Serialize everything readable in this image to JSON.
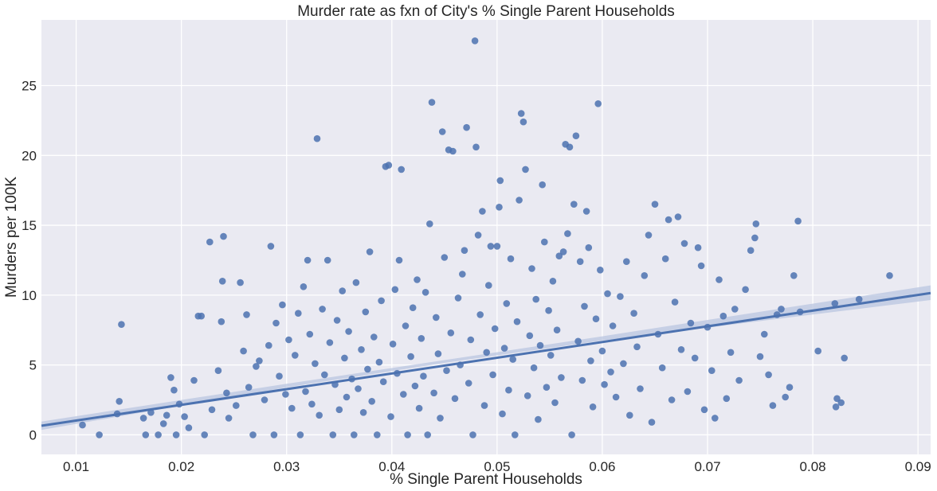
{
  "chart_data": {
    "type": "scatter",
    "title": "Murder rate as fxn of City's % Single Parent Households",
    "xlabel": "% Single Parent Households",
    "ylabel": "Murders per 100K",
    "xlim": [
      0.0067,
      0.0912
    ],
    "ylim": [
      -1.4,
      29.7
    ],
    "xticks": [
      0.01,
      0.02,
      0.03,
      0.04,
      0.05,
      0.06,
      0.07,
      0.08,
      0.09
    ],
    "xtick_labels": [
      "0.01",
      "0.02",
      "0.03",
      "0.04",
      "0.05",
      "0.06",
      "0.07",
      "0.08",
      "0.09"
    ],
    "yticks": [
      0,
      5,
      10,
      15,
      20,
      25
    ],
    "ytick_labels": [
      "0",
      "5",
      "10",
      "15",
      "20",
      "25"
    ],
    "grid": true,
    "colors": {
      "background": "#EAEAF2",
      "grid": "#FFFFFF",
      "points": "#4C72B0",
      "regression_line": "#4C72B0",
      "confidence_band": "#B9C5E0"
    },
    "regression_line": {
      "x": [
        0.0067,
        0.0912
      ],
      "y": [
        0.65,
        10.15
      ]
    },
    "confidence_band": {
      "x": [
        0.0067,
        0.03,
        0.045,
        0.06,
        0.0912
      ],
      "lower": [
        0.35,
        3.4,
        5.15,
        6.75,
        9.65
      ],
      "upper": [
        0.95,
        3.65,
        5.35,
        7.05,
        10.7
      ]
    },
    "points": [
      [
        0.0106,
        0.7
      ],
      [
        0.0122,
        0.0
      ],
      [
        0.0139,
        1.5
      ],
      [
        0.0141,
        2.4
      ],
      [
        0.0143,
        7.9
      ],
      [
        0.0164,
        1.2
      ],
      [
        0.0166,
        0.0
      ],
      [
        0.0171,
        1.6
      ],
      [
        0.0178,
        0.0
      ],
      [
        0.0183,
        0.8
      ],
      [
        0.0186,
        1.4
      ],
      [
        0.019,
        4.1
      ],
      [
        0.0193,
        3.2
      ],
      [
        0.0195,
        0.0
      ],
      [
        0.0198,
        2.2
      ],
      [
        0.0203,
        1.3
      ],
      [
        0.0207,
        0.5
      ],
      [
        0.0212,
        3.9
      ],
      [
        0.0216,
        8.5
      ],
      [
        0.0219,
        8.5
      ],
      [
        0.0222,
        0.0
      ],
      [
        0.0227,
        13.8
      ],
      [
        0.0229,
        1.8
      ],
      [
        0.0235,
        4.6
      ],
      [
        0.0238,
        8.1
      ],
      [
        0.0239,
        11.0
      ],
      [
        0.024,
        14.2
      ],
      [
        0.0243,
        3.0
      ],
      [
        0.0245,
        1.2
      ],
      [
        0.0252,
        2.1
      ],
      [
        0.0256,
        10.9
      ],
      [
        0.0259,
        6.0
      ],
      [
        0.0262,
        8.6
      ],
      [
        0.0264,
        3.4
      ],
      [
        0.0268,
        0.0
      ],
      [
        0.0271,
        4.9
      ],
      [
        0.0274,
        5.3
      ],
      [
        0.0279,
        2.5
      ],
      [
        0.0283,
        6.4
      ],
      [
        0.0285,
        13.5
      ],
      [
        0.0288,
        0.0
      ],
      [
        0.029,
        8.0
      ],
      [
        0.0293,
        4.2
      ],
      [
        0.0296,
        9.3
      ],
      [
        0.0299,
        2.9
      ],
      [
        0.0302,
        6.8
      ],
      [
        0.0305,
        1.9
      ],
      [
        0.0308,
        5.7
      ],
      [
        0.0311,
        8.7
      ],
      [
        0.0313,
        0.0
      ],
      [
        0.0316,
        10.6
      ],
      [
        0.0318,
        3.1
      ],
      [
        0.032,
        12.5
      ],
      [
        0.0322,
        7.2
      ],
      [
        0.0324,
        2.2
      ],
      [
        0.0327,
        5.1
      ],
      [
        0.0329,
        21.2
      ],
      [
        0.0331,
        1.4
      ],
      [
        0.0334,
        9.0
      ],
      [
        0.0336,
        4.3
      ],
      [
        0.0339,
        12.5
      ],
      [
        0.0341,
        6.6
      ],
      [
        0.0344,
        0.0
      ],
      [
        0.0346,
        3.6
      ],
      [
        0.0348,
        8.2
      ],
      [
        0.035,
        1.8
      ],
      [
        0.0353,
        10.3
      ],
      [
        0.0355,
        5.5
      ],
      [
        0.0357,
        2.7
      ],
      [
        0.0359,
        7.4
      ],
      [
        0.0362,
        4.0
      ],
      [
        0.0364,
        0.0
      ],
      [
        0.0366,
        10.9
      ],
      [
        0.0368,
        3.3
      ],
      [
        0.0371,
        6.1
      ],
      [
        0.0373,
        1.6
      ],
      [
        0.0375,
        8.8
      ],
      [
        0.0377,
        4.7
      ],
      [
        0.0379,
        13.1
      ],
      [
        0.0381,
        2.4
      ],
      [
        0.0383,
        7.0
      ],
      [
        0.0386,
        0.0
      ],
      [
        0.0388,
        5.2
      ],
      [
        0.039,
        9.6
      ],
      [
        0.0392,
        3.8
      ],
      [
        0.0394,
        19.2
      ],
      [
        0.0397,
        19.3
      ],
      [
        0.0399,
        1.3
      ],
      [
        0.0401,
        6.5
      ],
      [
        0.0403,
        10.4
      ],
      [
        0.0405,
        4.4
      ],
      [
        0.0407,
        12.5
      ],
      [
        0.0409,
        19.0
      ],
      [
        0.0411,
        2.9
      ],
      [
        0.0413,
        7.8
      ],
      [
        0.0415,
        0.0
      ],
      [
        0.0418,
        5.6
      ],
      [
        0.042,
        9.1
      ],
      [
        0.0422,
        3.5
      ],
      [
        0.0424,
        11.1
      ],
      [
        0.0426,
        1.9
      ],
      [
        0.0428,
        6.9
      ],
      [
        0.043,
        4.2
      ],
      [
        0.0432,
        10.2
      ],
      [
        0.0434,
        0.0
      ],
      [
        0.0436,
        15.1
      ],
      [
        0.0438,
        23.8
      ],
      [
        0.044,
        3.0
      ],
      [
        0.0442,
        8.4
      ],
      [
        0.0444,
        5.8
      ],
      [
        0.0446,
        1.2
      ],
      [
        0.0448,
        21.7
      ],
      [
        0.045,
        12.7
      ],
      [
        0.0452,
        4.6
      ],
      [
        0.0454,
        20.4
      ],
      [
        0.0456,
        7.3
      ],
      [
        0.0458,
        20.3
      ],
      [
        0.046,
        2.6
      ],
      [
        0.0463,
        9.8
      ],
      [
        0.0465,
        5.0
      ],
      [
        0.0467,
        11.5
      ],
      [
        0.0469,
        13.2
      ],
      [
        0.0471,
        22.0
      ],
      [
        0.0473,
        3.7
      ],
      [
        0.0475,
        6.8
      ],
      [
        0.0477,
        0.0
      ],
      [
        0.0479,
        28.2
      ],
      [
        0.048,
        20.6
      ],
      [
        0.0482,
        14.3
      ],
      [
        0.0484,
        8.6
      ],
      [
        0.0486,
        16.0
      ],
      [
        0.0488,
        2.1
      ],
      [
        0.049,
        5.9
      ],
      [
        0.0492,
        10.7
      ],
      [
        0.0494,
        13.5
      ],
      [
        0.0496,
        4.3
      ],
      [
        0.0498,
        7.6
      ],
      [
        0.05,
        13.5
      ],
      [
        0.0502,
        16.3
      ],
      [
        0.0503,
        18.2
      ],
      [
        0.0505,
        1.5
      ],
      [
        0.0507,
        6.2
      ],
      [
        0.0509,
        9.4
      ],
      [
        0.0511,
        3.2
      ],
      [
        0.0513,
        12.6
      ],
      [
        0.0515,
        5.4
      ],
      [
        0.0517,
        0.0
      ],
      [
        0.0519,
        8.1
      ],
      [
        0.0521,
        16.8
      ],
      [
        0.0523,
        23.0
      ],
      [
        0.0525,
        22.4
      ],
      [
        0.0527,
        19.0
      ],
      [
        0.0529,
        2.8
      ],
      [
        0.0531,
        7.1
      ],
      [
        0.0533,
        11.9
      ],
      [
        0.0535,
        4.8
      ],
      [
        0.0537,
        9.7
      ],
      [
        0.0539,
        1.1
      ],
      [
        0.0541,
        6.4
      ],
      [
        0.0543,
        17.9
      ],
      [
        0.0545,
        13.8
      ],
      [
        0.0547,
        3.4
      ],
      [
        0.0549,
        8.9
      ],
      [
        0.0551,
        5.7
      ],
      [
        0.0553,
        11.0
      ],
      [
        0.0555,
        2.3
      ],
      [
        0.0557,
        7.5
      ],
      [
        0.0559,
        12.8
      ],
      [
        0.0561,
        4.1
      ],
      [
        0.0563,
        13.1
      ],
      [
        0.0565,
        20.8
      ],
      [
        0.0567,
        14.4
      ],
      [
        0.0569,
        20.6
      ],
      [
        0.0571,
        0.0
      ],
      [
        0.0573,
        16.5
      ],
      [
        0.0575,
        21.4
      ],
      [
        0.0577,
        6.7
      ],
      [
        0.0579,
        12.4
      ],
      [
        0.0581,
        3.9
      ],
      [
        0.0583,
        9.2
      ],
      [
        0.0585,
        16.0
      ],
      [
        0.0587,
        13.4
      ],
      [
        0.0589,
        5.3
      ],
      [
        0.0591,
        2.0
      ],
      [
        0.0594,
        8.3
      ],
      [
        0.0596,
        23.7
      ],
      [
        0.0598,
        11.8
      ],
      [
        0.06,
        6.0
      ],
      [
        0.0602,
        3.6
      ],
      [
        0.0605,
        10.1
      ],
      [
        0.0608,
        4.5
      ],
      [
        0.061,
        7.8
      ],
      [
        0.0613,
        2.7
      ],
      [
        0.0617,
        9.9
      ],
      [
        0.062,
        5.1
      ],
      [
        0.0623,
        12.4
      ],
      [
        0.0626,
        1.4
      ],
      [
        0.063,
        8.7
      ],
      [
        0.0633,
        6.3
      ],
      [
        0.0636,
        3.3
      ],
      [
        0.064,
        11.4
      ],
      [
        0.0644,
        14.3
      ],
      [
        0.0647,
        0.9
      ],
      [
        0.065,
        16.5
      ],
      [
        0.0653,
        7.2
      ],
      [
        0.0657,
        4.8
      ],
      [
        0.066,
        12.6
      ],
      [
        0.0663,
        15.4
      ],
      [
        0.0666,
        2.5
      ],
      [
        0.0669,
        9.5
      ],
      [
        0.0672,
        15.6
      ],
      [
        0.0675,
        6.1
      ],
      [
        0.0678,
        13.7
      ],
      [
        0.0681,
        3.1
      ],
      [
        0.0684,
        8.0
      ],
      [
        0.0688,
        5.5
      ],
      [
        0.0691,
        13.4
      ],
      [
        0.0694,
        12.1
      ],
      [
        0.0697,
        1.8
      ],
      [
        0.07,
        7.7
      ],
      [
        0.0704,
        4.6
      ],
      [
        0.0707,
        1.2
      ],
      [
        0.0711,
        11.1
      ],
      [
        0.0715,
        8.5
      ],
      [
        0.0718,
        2.6
      ],
      [
        0.0722,
        5.9
      ],
      [
        0.0726,
        9.0
      ],
      [
        0.073,
        3.9
      ],
      [
        0.0736,
        10.4
      ],
      [
        0.0741,
        13.2
      ],
      [
        0.0745,
        14.1
      ],
      [
        0.0746,
        15.1
      ],
      [
        0.075,
        5.6
      ],
      [
        0.0754,
        7.2
      ],
      [
        0.0758,
        4.3
      ],
      [
        0.0762,
        2.1
      ],
      [
        0.0766,
        8.6
      ],
      [
        0.077,
        9.0
      ],
      [
        0.0774,
        2.7
      ],
      [
        0.0778,
        3.4
      ],
      [
        0.0782,
        11.4
      ],
      [
        0.0786,
        15.3
      ],
      [
        0.0788,
        8.8
      ],
      [
        0.0805,
        6.0
      ],
      [
        0.0821,
        9.4
      ],
      [
        0.0822,
        2.0
      ],
      [
        0.0823,
        2.6
      ],
      [
        0.0827,
        2.3
      ],
      [
        0.083,
        5.5
      ],
      [
        0.0844,
        9.7
      ],
      [
        0.0873,
        11.4
      ]
    ]
  }
}
